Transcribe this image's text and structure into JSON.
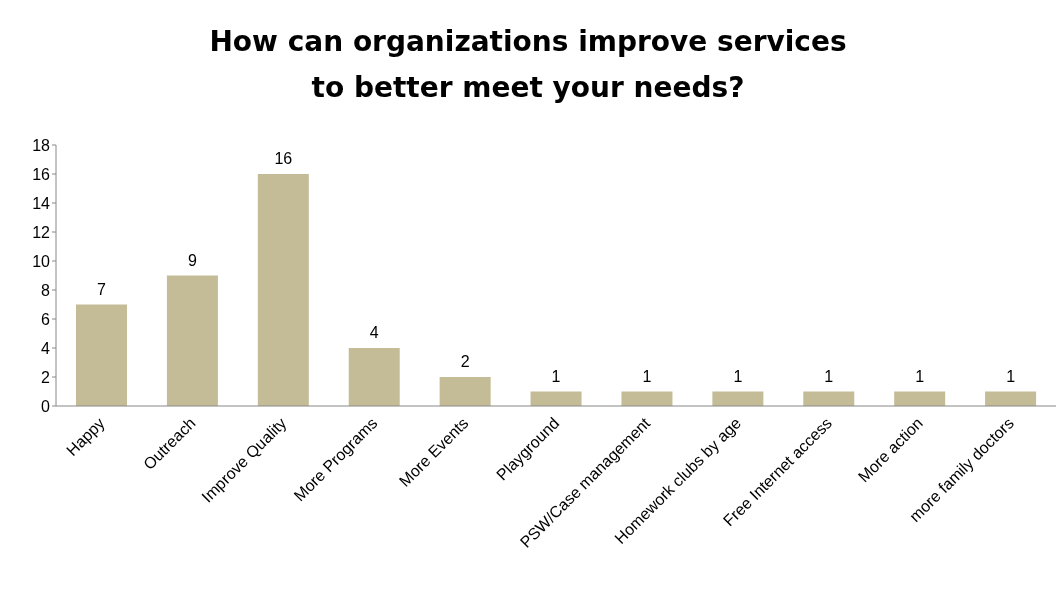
{
  "chart_data": {
    "type": "bar",
    "title": "How can organizations improve services to better meet your needs?",
    "categories": [
      "Happy",
      "Outreach",
      "Improve Quality",
      "More Programs",
      "More Events",
      "Playground",
      "PSW/Case management",
      "Homework clubs by age",
      "Free Internet access",
      "More action",
      "more family doctors"
    ],
    "values": [
      7,
      9,
      16,
      4,
      2,
      1,
      1,
      1,
      1,
      1,
      1
    ],
    "color": "#c4bc96",
    "ylim": [
      0,
      18
    ],
    "yticks": [
      0,
      2,
      4,
      6,
      8,
      10,
      12,
      14,
      16,
      18
    ],
    "grid": false,
    "data_labels": true
  }
}
